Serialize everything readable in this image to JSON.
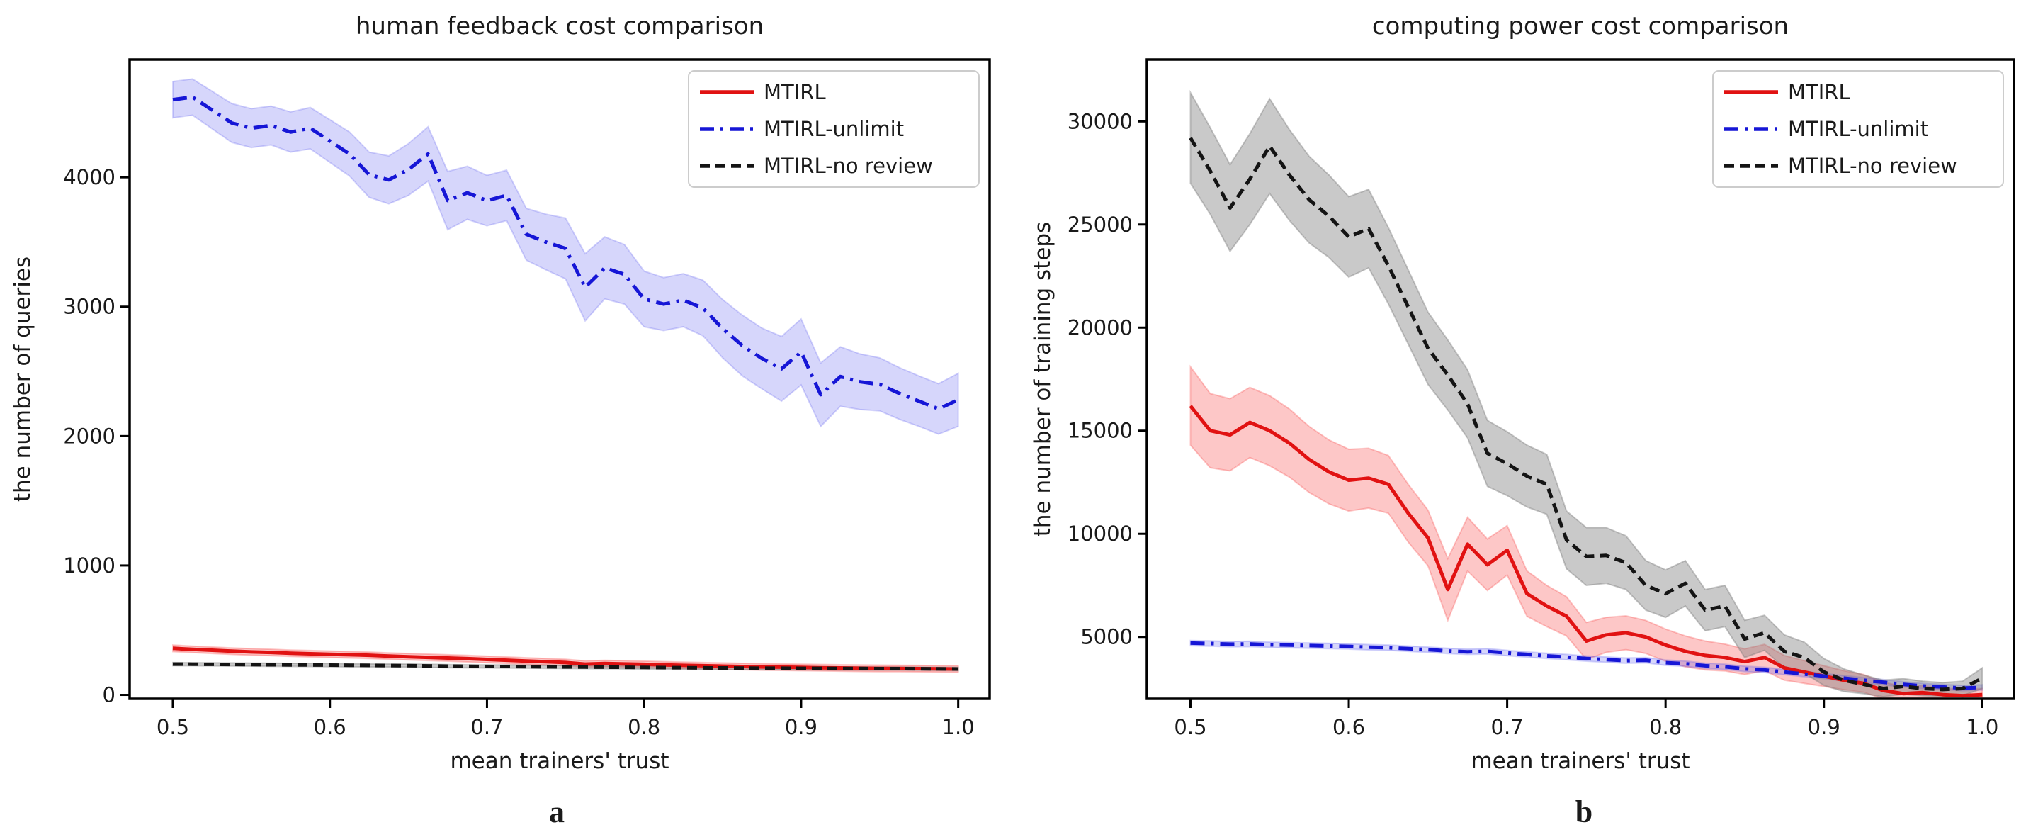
{
  "figure": {
    "background": "#ffffff",
    "panel_letters": {
      "a": "a",
      "b": "b"
    }
  },
  "legend": {
    "entries": [
      "MTIRL",
      "MTIRL-unlimit",
      "MTIRL-no review"
    ],
    "position": "upper right"
  },
  "chart_data": [
    {
      "type": "line",
      "panel_label": "a",
      "title": "human feedback cost comparison",
      "xlabel": "mean trainers' trust",
      "ylabel": "the number of queries",
      "grid": false,
      "legend_position": "upper right",
      "xlim": [
        0.4725,
        1.02
      ],
      "ylim": [
        -30,
        4910
      ],
      "xticks": [
        0.5,
        0.6,
        0.7,
        0.8,
        0.9,
        1.0
      ],
      "xtick_labels": [
        "0.5",
        "0.6",
        "0.7",
        "0.8",
        "0.9",
        "1.0"
      ],
      "yticks": [
        0,
        1000,
        2000,
        3000,
        4000
      ],
      "ytick_labels": [
        "0",
        "1000",
        "2000",
        "3000",
        "4000"
      ],
      "x": [
        0.5,
        0.5125,
        0.525,
        0.5375,
        0.55,
        0.5625,
        0.575,
        0.5875,
        0.6,
        0.6125,
        0.625,
        0.6375,
        0.65,
        0.6625,
        0.675,
        0.6875,
        0.7,
        0.7125,
        0.725,
        0.7375,
        0.75,
        0.7625,
        0.775,
        0.7875,
        0.8,
        0.8125,
        0.825,
        0.8375,
        0.85,
        0.8625,
        0.875,
        0.8875,
        0.9,
        0.9125,
        0.925,
        0.9375,
        0.95,
        0.9625,
        0.975,
        0.9875,
        1.0
      ],
      "series": [
        {
          "name": "MTIRL",
          "color": "#e11212",
          "dash": "",
          "band_color": "rgba(250,70,70,0.30)",
          "band": 25,
          "values": [
            360,
            352,
            345,
            338,
            332,
            328,
            322,
            318,
            314,
            310,
            306,
            300,
            295,
            290,
            285,
            280,
            274,
            268,
            262,
            256,
            250,
            238,
            242,
            239,
            236,
            232,
            228,
            225,
            222,
            219,
            216,
            214,
            212,
            210,
            208,
            206,
            205,
            204,
            203,
            201,
            200
          ]
        },
        {
          "name": "MTIRL-unlimit",
          "color": "#1616d6",
          "dash": "20,9,4,9",
          "band_color": "rgba(70,70,235,0.22)",
          "band": [
            140,
            140,
            145,
            150,
            150,
            150,
            155,
            160,
            165,
            170,
            175,
            185,
            200,
            210,
            225,
            205,
            195,
            195,
            200,
            215,
            235,
            260,
            240,
            230,
            215,
            205,
            205,
            215,
            225,
            235,
            235,
            250,
            255,
            245,
            230,
            215,
            205,
            200,
            195,
            195,
            205
          ],
          "values": [
            4600,
            4620,
            4520,
            4420,
            4380,
            4400,
            4350,
            4380,
            4280,
            4180,
            4020,
            3980,
            4060,
            4180,
            3820,
            3880,
            3820,
            3860,
            3560,
            3500,
            3450,
            3150,
            3300,
            3250,
            3060,
            3020,
            3050,
            2990,
            2830,
            2700,
            2600,
            2520,
            2650,
            2320,
            2460,
            2420,
            2400,
            2330,
            2270,
            2210,
            2280
          ]
        },
        {
          "name": "MTIRL-no review",
          "color": "#141414",
          "dash": "14,8",
          "band_color": "rgba(120,120,120,0.40)",
          "band": 12,
          "values": [
            238,
            237,
            236,
            235,
            234,
            233,
            232,
            231,
            230,
            229,
            228,
            227,
            226,
            224,
            222,
            221,
            220,
            219,
            218,
            217,
            216,
            215,
            214,
            213,
            212,
            211,
            210,
            209,
            208,
            207,
            206,
            206,
            205,
            205,
            204,
            204,
            203,
            203,
            202,
            201,
            200
          ]
        }
      ]
    },
    {
      "type": "line",
      "panel_label": "b",
      "title": "computing power cost comparison",
      "xlabel": "mean trainers' trust",
      "ylabel": "the number of training steps",
      "grid": false,
      "legend_position": "upper right",
      "xlim": [
        0.4725,
        1.02
      ],
      "ylim": [
        2000,
        33000
      ],
      "xticks": [
        0.5,
        0.6,
        0.7,
        0.8,
        0.9,
        1.0
      ],
      "xtick_labels": [
        "0.5",
        "0.6",
        "0.7",
        "0.8",
        "0.9",
        "1.0"
      ],
      "yticks": [
        5000,
        10000,
        15000,
        20000,
        25000,
        30000
      ],
      "ytick_labels": [
        "5000",
        "10000",
        "15000",
        "20000",
        "25000",
        "30000"
      ],
      "x": [
        0.5,
        0.5125,
        0.525,
        0.5375,
        0.55,
        0.5625,
        0.575,
        0.5875,
        0.6,
        0.6125,
        0.625,
        0.6375,
        0.65,
        0.6625,
        0.675,
        0.6875,
        0.7,
        0.7125,
        0.725,
        0.7375,
        0.75,
        0.7625,
        0.775,
        0.7875,
        0.8,
        0.8125,
        0.825,
        0.8375,
        0.85,
        0.8625,
        0.875,
        0.8875,
        0.9,
        0.9125,
        0.925,
        0.9375,
        0.95,
        0.9625,
        0.975,
        0.9875,
        1.0
      ],
      "series": [
        {
          "name": "MTIRL",
          "color": "#e11212",
          "dash": "",
          "band_color": "rgba(250,70,70,0.30)",
          "band": [
            1900,
            1800,
            1750,
            1700,
            1700,
            1650,
            1600,
            1550,
            1500,
            1450,
            1400,
            1400,
            1350,
            1500,
            1300,
            1250,
            1200,
            1100,
            1000,
            950,
            900,
            850,
            820,
            800,
            780,
            750,
            700,
            650,
            620,
            640,
            600,
            550,
            500,
            460,
            430,
            400,
            360,
            340,
            320,
            300,
            300
          ],
          "values": [
            16200,
            15000,
            14800,
            15400,
            15000,
            14400,
            13600,
            13000,
            12600,
            12700,
            12400,
            11000,
            9800,
            7300,
            9500,
            8500,
            9200,
            7100,
            6500,
            6000,
            4800,
            5100,
            5200,
            5000,
            4600,
            4300,
            4100,
            4000,
            3800,
            4000,
            3500,
            3300,
            3100,
            2900,
            2750,
            2400,
            2250,
            2300,
            2200,
            2150,
            2200
          ]
        },
        {
          "name": "MTIRL-unlimit",
          "color": "#1616d6",
          "dash": "20,9,4,9",
          "band_color": "rgba(70,70,235,0.22)",
          "band": 130,
          "values": [
            4700,
            4680,
            4650,
            4660,
            4620,
            4600,
            4580,
            4560,
            4540,
            4500,
            4480,
            4430,
            4380,
            4320,
            4280,
            4300,
            4220,
            4150,
            4080,
            4020,
            3950,
            3900,
            3850,
            3870,
            3750,
            3700,
            3600,
            3550,
            3450,
            3400,
            3300,
            3200,
            3100,
            3000,
            2900,
            2800,
            2700,
            2620,
            2570,
            2520,
            2550
          ]
        },
        {
          "name": "MTIRL-no review",
          "color": "#141414",
          "dash": "14,8",
          "band_color": "rgba(120,120,120,0.40)",
          "band": [
            2200,
            2100,
            2100,
            2200,
            2300,
            2200,
            2100,
            2000,
            1950,
            1900,
            1850,
            1800,
            1750,
            1700,
            1650,
            1600,
            1550,
            1500,
            1450,
            1400,
            1400,
            1350,
            1300,
            1200,
            1150,
            1100,
            1000,
            1000,
            900,
            850,
            800,
            750,
            650,
            550,
            450,
            400,
            380,
            350,
            330,
            350,
            500
          ],
          "values": [
            29200,
            27600,
            25800,
            27200,
            28800,
            27400,
            26200,
            25400,
            24400,
            24800,
            23000,
            21000,
            19000,
            17700,
            16300,
            13900,
            13400,
            12800,
            12400,
            9700,
            8900,
            8950,
            8600,
            7500,
            7100,
            7600,
            6300,
            6500,
            4900,
            5200,
            4300,
            4000,
            3300,
            2900,
            2700,
            2500,
            2600,
            2500,
            2450,
            2500,
            3000
          ]
        }
      ]
    }
  ]
}
